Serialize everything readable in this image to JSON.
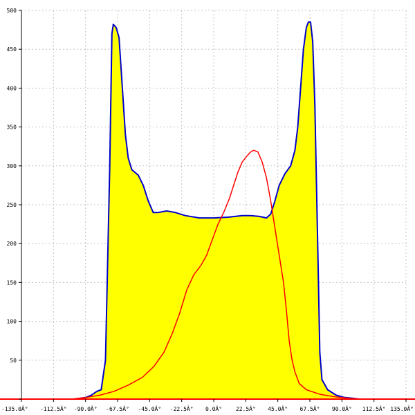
{
  "chart_data": {
    "type": "area",
    "title": "",
    "xlabel": "",
    "ylabel": "",
    "xlim": [
      -135,
      135
    ],
    "ylim": [
      0,
      500
    ],
    "grid": true,
    "x_ticks": [
      -135,
      -112.5,
      -90,
      -67.5,
      -45,
      -22.5,
      0,
      22.5,
      45,
      67.5,
      90,
      112.5,
      135
    ],
    "x_tick_labels": [
      "-135.0Â°",
      "-112.5Â°",
      "-90.0Â°",
      "-67.5Â°",
      "-45.0Â°",
      "-22.5Â°",
      "0.0Â°",
      "22.5Â°",
      "45.0Â°",
      "67.5Â°",
      "90.0Â°",
      "112.5Â°",
      "135.0Â°"
    ],
    "y_ticks": [
      0,
      50,
      100,
      150,
      200,
      250,
      300,
      350,
      400,
      450,
      500
    ],
    "y_tick_labels": [
      "0",
      "50",
      "100",
      "150",
      "200",
      "250",
      "300",
      "350",
      "400",
      "450",
      "500"
    ],
    "colors": {
      "fill": "#ffff00",
      "outline": "#0000cc",
      "overlay": "#ff0000",
      "baseline": "#ff0000"
    },
    "series": [
      {
        "style": "filled-area",
        "points": [
          [
            -98,
            0
          ],
          [
            -94,
            1
          ],
          [
            -90,
            2
          ],
          [
            -86,
            5
          ],
          [
            -82,
            10
          ],
          [
            -79,
            12
          ],
          [
            -76,
            50
          ],
          [
            -73,
            300
          ],
          [
            -71.5,
            470
          ],
          [
            -70.5,
            482
          ],
          [
            -68.5,
            478
          ],
          [
            -66.5,
            465
          ],
          [
            -64.5,
            410
          ],
          [
            -62,
            340
          ],
          [
            -60,
            310
          ],
          [
            -57.5,
            295
          ],
          [
            -53,
            288
          ],
          [
            -49.5,
            275
          ],
          [
            -46,
            255
          ],
          [
            -42.5,
            240
          ],
          [
            -39,
            240
          ],
          [
            -33,
            242
          ],
          [
            -27,
            240
          ],
          [
            -20,
            236
          ],
          [
            -10,
            233
          ],
          [
            0,
            233
          ],
          [
            10,
            234
          ],
          [
            20,
            236
          ],
          [
            26,
            236
          ],
          [
            32,
            235
          ],
          [
            37,
            233
          ],
          [
            40,
            238
          ],
          [
            43,
            255
          ],
          [
            46,
            275
          ],
          [
            50,
            290
          ],
          [
            54,
            300
          ],
          [
            57,
            320
          ],
          [
            59,
            350
          ],
          [
            61,
            400
          ],
          [
            63,
            450
          ],
          [
            65,
            478
          ],
          [
            66.5,
            485
          ],
          [
            68,
            485
          ],
          [
            69.5,
            460
          ],
          [
            71,
            380
          ],
          [
            73,
            200
          ],
          [
            74.5,
            60
          ],
          [
            76,
            25
          ],
          [
            80,
            12
          ],
          [
            86,
            5
          ],
          [
            92,
            2
          ],
          [
            98,
            1
          ],
          [
            102,
            0
          ]
        ]
      },
      {
        "style": "line",
        "points": [
          [
            -100,
            0
          ],
          [
            -90,
            2
          ],
          [
            -80,
            5
          ],
          [
            -70,
            10
          ],
          [
            -60,
            18
          ],
          [
            -50,
            28
          ],
          [
            -42,
            42
          ],
          [
            -35,
            60
          ],
          [
            -29,
            85
          ],
          [
            -24,
            110
          ],
          [
            -19,
            140
          ],
          [
            -14,
            160
          ],
          [
            -9,
            172
          ],
          [
            -5,
            185
          ],
          [
            -1,
            205
          ],
          [
            3,
            225
          ],
          [
            7,
            240
          ],
          [
            11,
            258
          ],
          [
            14,
            275
          ],
          [
            17,
            292
          ],
          [
            20,
            305
          ],
          [
            23,
            312
          ],
          [
            26,
            318
          ],
          [
            28,
            320
          ],
          [
            31,
            318
          ],
          [
            34,
            305
          ],
          [
            37,
            285
          ],
          [
            40,
            255
          ],
          [
            43,
            220
          ],
          [
            46,
            185
          ],
          [
            49,
            150
          ],
          [
            51,
            115
          ],
          [
            53,
            75
          ],
          [
            55,
            50
          ],
          [
            57,
            35
          ],
          [
            60,
            20
          ],
          [
            65,
            12
          ],
          [
            75,
            6
          ],
          [
            85,
            3
          ],
          [
            95,
            1
          ],
          [
            105,
            0
          ]
        ]
      }
    ]
  }
}
